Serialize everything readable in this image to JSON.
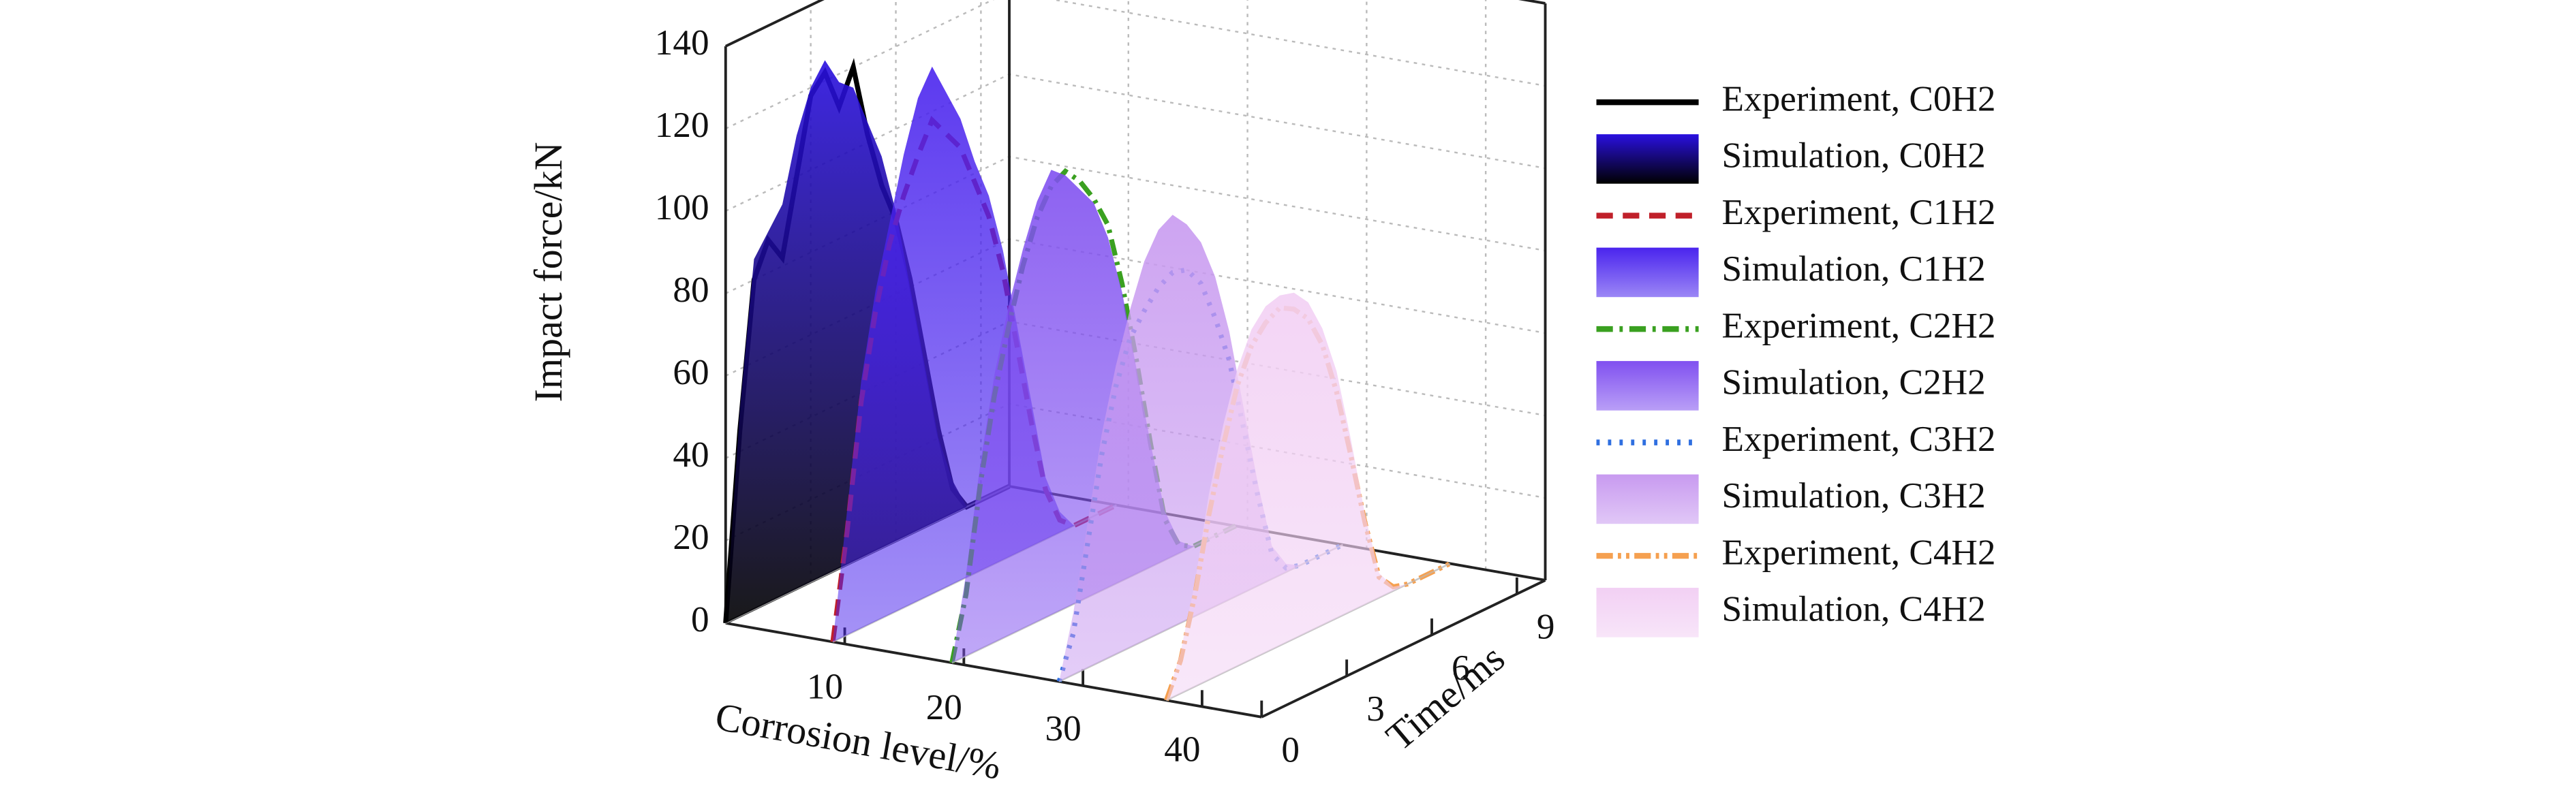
{
  "chart_data": {
    "type": "waterfall3d",
    "y_label": "Impact force/kN",
    "z_label": "Corrosion level/%",
    "x_label": "Time/ms",
    "ylim": [
      0,
      140
    ],
    "yticks": [
      0,
      20,
      40,
      60,
      80,
      100,
      120,
      140
    ],
    "zlim": [
      0,
      45
    ],
    "zticks": [
      10,
      20,
      30,
      40
    ],
    "xlim": [
      0,
      10
    ],
    "xticks": [
      0,
      3,
      6,
      9
    ],
    "grid": true,
    "legend": "right",
    "x": [
      0,
      0.5,
      1,
      1.5,
      2,
      2.5,
      3,
      3.5,
      4,
      4.5,
      5,
      5.5,
      6,
      6.5,
      7,
      7.5,
      8,
      8.5,
      9,
      9.5,
      10
    ],
    "series": [
      {
        "name": "Experiment, C0H2",
        "color": "#000000",
        "dash": "solid",
        "corrosion": 0,
        "values": [
          0,
          45,
          80,
          88,
          82,
          100,
          118,
          122,
          112,
          120,
          102,
          88,
          78,
          62,
          42,
          22,
          6,
          0,
          0,
          0,
          0
        ]
      },
      {
        "name": "Simulation, C0H2",
        "color": "#2a10e0",
        "fill": true,
        "corrosion": 0,
        "values": [
          0,
          50,
          85,
          90,
          95,
          110,
          120,
          125,
          118,
          115,
          105,
          95,
          80,
          60,
          40,
          20,
          8,
          0,
          0,
          0,
          0
        ]
      },
      {
        "name": "Experiment, C1H2",
        "color": "#c0202a",
        "dash": "dash",
        "corrosion": 9,
        "values": [
          0,
          25,
          55,
          75,
          90,
          100,
          108,
          115,
          110,
          105,
          95,
          85,
          70,
          50,
          30,
          12,
          3,
          0,
          0,
          0,
          0
        ]
      },
      {
        "name": "Simulation, C1H2",
        "color": "#4a24ee",
        "fill": true,
        "corrosion": 9,
        "values": [
          0,
          30,
          60,
          80,
          95,
          110,
          122,
          128,
          120,
          112,
          100,
          90,
          75,
          55,
          35,
          15,
          5,
          0,
          0,
          0,
          0
        ]
      },
      {
        "name": "Experiment, C2H2",
        "color": "#3aa020",
        "dash": "dashdot",
        "corrosion": 19,
        "values": [
          0,
          15,
          40,
          60,
          75,
          88,
          98,
          104,
          106,
          102,
          96,
          88,
          72,
          52,
          30,
          10,
          2,
          0,
          0,
          0,
          0
        ]
      },
      {
        "name": "Simulation, C2H2",
        "color": "#8050f0",
        "fill": true,
        "corrosion": 19,
        "values": [
          0,
          20,
          45,
          65,
          80,
          92,
          102,
          108,
          105,
          100,
          95,
          85,
          70,
          50,
          30,
          12,
          3,
          0,
          0,
          0,
          0
        ]
      },
      {
        "name": "Experiment, C3H2",
        "color": "#2f6fe0",
        "dash": "dot",
        "corrosion": 28,
        "values": [
          0,
          10,
          30,
          50,
          65,
          75,
          80,
          84,
          86,
          85,
          80,
          70,
          58,
          40,
          22,
          6,
          1,
          0,
          0,
          0,
          0
        ]
      },
      {
        "name": "Simulation, C3H2",
        "color": "#c89af0",
        "fill": true,
        "corrosion": 28,
        "values": [
          0,
          15,
          35,
          55,
          70,
          82,
          92,
          98,
          100,
          96,
          90,
          80,
          65,
          45,
          25,
          8,
          2,
          0,
          0,
          0,
          0
        ]
      },
      {
        "name": "Experiment, C4H2",
        "color": "#f5a050",
        "dash": "dashdotdot",
        "corrosion": 37,
        "values": [
          0,
          8,
          22,
          40,
          55,
          68,
          76,
          80,
          82,
          80,
          76,
          68,
          55,
          38,
          20,
          5,
          1,
          0,
          0,
          0,
          0
        ]
      },
      {
        "name": "Simulation, C4H2",
        "color": "#f2d0f4",
        "fill": true,
        "corrosion": 37,
        "values": [
          0,
          10,
          25,
          45,
          60,
          72,
          80,
          84,
          85,
          84,
          80,
          72,
          60,
          42,
          22,
          6,
          1,
          0,
          0,
          0,
          0
        ]
      }
    ]
  }
}
